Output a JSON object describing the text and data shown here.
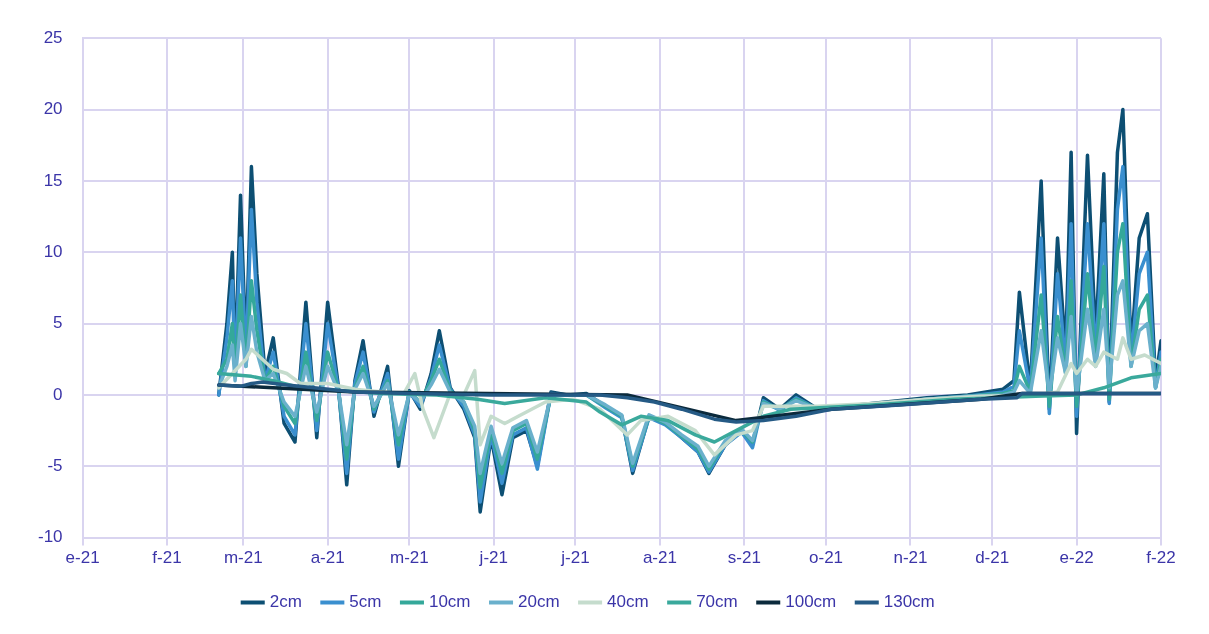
{
  "chart_data": {
    "type": "line",
    "x": [
      "2021-02-20",
      "2021-02-23",
      "2021-02-25",
      "2021-02-26",
      "2021-02-28",
      "2021-03-02",
      "2021-03-04",
      "2021-03-06",
      "2021-03-09",
      "2021-03-12",
      "2021-03-16",
      "2021-03-20",
      "2021-03-24",
      "2021-03-28",
      "2021-04-01",
      "2021-04-05",
      "2021-04-08",
      "2021-04-11",
      "2021-04-14",
      "2021-04-18",
      "2021-04-23",
      "2021-04-27",
      "2021-05-01",
      "2021-05-05",
      "2021-05-09",
      "2021-05-12",
      "2021-05-16",
      "2021-05-21",
      "2021-05-25",
      "2021-05-27",
      "2021-05-31",
      "2021-06-04",
      "2021-06-08",
      "2021-06-13",
      "2021-06-17",
      "2021-06-22",
      "2021-06-28",
      "2021-07-05",
      "2021-07-12",
      "2021-07-18",
      "2021-07-22",
      "2021-07-28",
      "2021-08-03",
      "2021-08-09",
      "2021-08-15",
      "2021-08-19",
      "2021-08-25",
      "2021-08-31",
      "2021-09-04",
      "2021-09-08",
      "2021-09-14",
      "2021-09-20",
      "2021-09-28",
      "2021-10-08",
      "2021-10-23",
      "2021-11-07",
      "2021-11-22",
      "2021-12-05",
      "2021-12-09",
      "2021-12-11",
      "2021-12-15",
      "2021-12-19",
      "2021-12-22",
      "2021-12-25",
      "2021-12-28",
      "2021-12-30",
      "2022-01-01",
      "2022-01-05",
      "2022-01-08",
      "2022-01-11",
      "2022-01-13",
      "2022-01-16",
      "2022-01-18",
      "2022-01-21",
      "2022-01-24",
      "2022-01-27",
      "2022-01-30",
      "2022-02-01"
    ],
    "series": [
      {
        "name": "2cm",
        "color": "#0d4f73",
        "values": [
          0,
          5,
          10,
          2,
          14,
          3,
          16,
          8.5,
          1.5,
          4,
          -2,
          -3.3,
          6.5,
          -3,
          6.5,
          0.5,
          -6.3,
          1,
          3.8,
          -1.5,
          2,
          -5,
          0.3,
          -1,
          1.5,
          4.5,
          0.5,
          -1,
          -3,
          -8.2,
          -3,
          -7,
          -3,
          -2.5,
          -5,
          0.2,
          0,
          0.1,
          -0.8,
          -1.5,
          -5.5,
          -1.5,
          -2,
          -3,
          -4,
          -5.5,
          -3.5,
          -2.5,
          -3.5,
          -0.2,
          -1,
          0,
          -1,
          -0.8,
          -0.5,
          -0.2,
          0,
          0.4,
          1,
          7.2,
          0.5,
          15,
          -1,
          11,
          3,
          17,
          -2.7,
          16.8,
          4,
          15.5,
          -0.5,
          17,
          20,
          3,
          11,
          12.7,
          1,
          3.8
        ]
      },
      {
        "name": "5cm",
        "color": "#3a8fcf",
        "values": [
          0,
          4,
          8,
          1.5,
          11,
          2.5,
          13,
          6.5,
          1,
          3,
          -1.5,
          -2.8,
          5,
          -2.5,
          5,
          0.3,
          -5.5,
          0.8,
          3,
          -1.2,
          1.5,
          -4.5,
          0.2,
          -0.8,
          1.2,
          3.5,
          0.4,
          -0.8,
          -2.8,
          -7.5,
          -2.8,
          -6.2,
          -2.8,
          -2.3,
          -5.2,
          0.1,
          0,
          0,
          -0.9,
          -1.6,
          -5.3,
          -1.6,
          -2.1,
          -3,
          -4,
          -5.4,
          -3.5,
          -2.6,
          -3.7,
          -0.4,
          -1.1,
          -0.2,
          -1,
          -0.8,
          -0.6,
          -0.3,
          -0.1,
          0.2,
          0.6,
          4.5,
          0.3,
          11,
          -1.3,
          8.5,
          2,
          12,
          -1.5,
          12,
          3,
          12,
          -0.6,
          13,
          16,
          2.5,
          8.5,
          10,
          0.5,
          3
        ]
      },
      {
        "name": "10cm",
        "color": "#34a89a",
        "values": [
          1.5,
          2.5,
          5,
          1.5,
          7,
          2,
          8,
          4.5,
          1,
          2,
          -0.8,
          -2,
          3,
          -1.8,
          3,
          0.3,
          -4.5,
          0.5,
          2,
          -1,
          1,
          -3.5,
          0.2,
          -0.5,
          1,
          2.5,
          0.3,
          -0.5,
          -2.5,
          -6.5,
          -2.5,
          -5.5,
          -2.5,
          -2,
          -4.5,
          0,
          0,
          0,
          -0.8,
          -1.5,
          -5,
          -1.5,
          -2,
          -2.9,
          -3.8,
          -5.2,
          -3.3,
          -2.5,
          -3.3,
          -0.5,
          -1,
          -0.3,
          -1,
          -0.8,
          -0.6,
          -0.3,
          -0.1,
          0.1,
          0.3,
          2,
          0.2,
          7,
          -0.8,
          5.5,
          1.5,
          8,
          -0.8,
          8.5,
          2.5,
          9,
          -0.3,
          10,
          12,
          2,
          6,
          7,
          0.5,
          2.5
        ]
      },
      {
        "name": "20cm",
        "color": "#6ab0cc",
        "values": [
          0.5,
          2,
          3.5,
          1,
          5,
          2,
          5.5,
          3,
          1,
          1.5,
          -0.5,
          -1.5,
          2,
          -1.2,
          2,
          0.2,
          -3.5,
          0.4,
          1.5,
          -0.8,
          0.8,
          -2.8,
          0.1,
          -0.5,
          0.7,
          1.8,
          0.2,
          -0.5,
          -2.2,
          -5.5,
          -2.2,
          -4.8,
          -2.3,
          -1.8,
          -4,
          0,
          0,
          0,
          -0.7,
          -1.4,
          -4.8,
          -1.4,
          -1.9,
          -2.8,
          -3.6,
          -5,
          -3.2,
          -2.4,
          -3.2,
          -0.6,
          -1,
          -0.4,
          -1,
          -0.8,
          -0.6,
          -0.3,
          -0.1,
          0,
          0.2,
          1,
          0.1,
          4.5,
          0,
          4,
          1.5,
          5.5,
          0,
          6,
          2,
          6,
          0.5,
          7,
          8,
          2,
          4.5,
          5,
          0.5,
          2
        ]
      },
      {
        "name": "40cm",
        "color": "#c5dccd",
        "x": [
          "2021-02-20",
          "2021-02-25",
          "2021-03-02",
          "2021-03-04",
          "2021-03-08",
          "2021-03-12",
          "2021-03-17",
          "2021-03-22",
          "2021-04-01",
          "2021-04-11",
          "2021-04-21",
          "2021-04-29",
          "2021-05-03",
          "2021-05-06",
          "2021-05-10",
          "2021-05-16",
          "2021-05-21",
          "2021-05-25",
          "2021-05-27",
          "2021-05-31",
          "2021-06-05",
          "2021-06-10",
          "2021-06-20",
          "2021-06-30",
          "2021-07-10",
          "2021-07-20",
          "2021-07-25",
          "2021-08-04",
          "2021-08-14",
          "2021-08-21",
          "2021-08-29",
          "2021-09-04",
          "2021-09-08",
          "2021-09-18",
          "2021-09-28",
          "2021-10-18",
          "2021-11-07",
          "2021-11-27",
          "2021-12-17",
          "2021-12-25",
          "2021-12-30",
          "2022-01-01",
          "2022-01-05",
          "2022-01-08",
          "2022-01-11",
          "2022-01-16",
          "2022-01-18",
          "2022-01-21",
          "2022-01-26",
          "2022-02-01"
        ],
        "values": [
          0.5,
          1.5,
          2.5,
          3.2,
          2.5,
          1.8,
          1.5,
          0.8,
          0.8,
          0.4,
          0.2,
          0.1,
          1.5,
          -1,
          -3,
          0.1,
          0,
          1.7,
          -3.5,
          -1.5,
          -2,
          -1.5,
          -0.5,
          -0.3,
          -1,
          -2.8,
          -1.8,
          -1.5,
          -2.5,
          -4.2,
          -2.8,
          -2.5,
          -0.8,
          -0.8,
          -0.8,
          -0.6,
          -0.3,
          -0.1,
          0,
          0.2,
          2.2,
          1.5,
          2.5,
          2,
          3,
          2.5,
          4,
          2.5,
          2.8,
          2.2
        ]
      },
      {
        "name": "70cm",
        "color": "#3aa99c",
        "x": [
          "2021-02-20",
          "2021-03-04",
          "2021-03-12",
          "2021-03-22",
          "2021-04-06",
          "2021-04-21",
          "2021-05-11",
          "2021-05-26",
          "2021-06-05",
          "2021-06-20",
          "2021-07-05",
          "2021-07-10",
          "2021-07-18",
          "2021-07-25",
          "2021-08-04",
          "2021-08-14",
          "2021-08-21",
          "2021-08-29",
          "2021-09-08",
          "2021-09-18",
          "2021-10-18",
          "2021-11-17",
          "2021-12-17",
          "2022-01-01",
          "2022-01-11",
          "2022-01-21",
          "2022-02-01"
        ],
        "values": [
          1.5,
          1.3,
          1,
          0.5,
          0.3,
          0.1,
          0,
          -0.3,
          -0.6,
          -0.2,
          -0.5,
          -1.2,
          -2.1,
          -1.5,
          -1.8,
          -2.8,
          -3.3,
          -2.5,
          -1.5,
          -1,
          -0.7,
          -0.3,
          -0.1,
          0,
          0.5,
          1.2,
          1.5
        ]
      },
      {
        "name": "100cm",
        "color": "#0b2a3c",
        "x": [
          "2021-02-20",
          "2021-04-11",
          "2021-07-20",
          "2021-08-29",
          "2021-10-03",
          "2021-11-27",
          "2021-12-12",
          "2022-02-01"
        ],
        "values": [
          0.7,
          0.2,
          0,
          -1.8,
          -1,
          -0.3,
          0.1,
          0.1
        ]
      },
      {
        "name": "130cm",
        "color": "#255a85",
        "x": [
          "2021-02-20",
          "2021-02-28",
          "2021-03-04",
          "2021-03-08",
          "2021-03-17",
          "2021-03-27",
          "2021-04-11",
          "2021-05-01",
          "2021-05-31",
          "2021-07-10",
          "2021-07-20",
          "2021-07-30",
          "2021-08-09",
          "2021-08-21",
          "2021-08-29",
          "2021-09-08",
          "2021-09-20",
          "2021-10-03",
          "2021-10-28",
          "2021-11-27",
          "2021-12-10",
          "2021-12-12",
          "2022-01-06",
          "2022-02-01"
        ],
        "values": [
          0.7,
          0.6,
          0.8,
          0.9,
          0.7,
          0.5,
          0.2,
          0.1,
          0,
          0,
          -0.2,
          -0.5,
          -1,
          -1.7,
          -1.9,
          -1.8,
          -1.5,
          -1,
          -0.7,
          -0.3,
          -0.2,
          0.1,
          0.1,
          0.1
        ]
      }
    ],
    "xlim": [
      "2021-01-01",
      "2022-02-01"
    ],
    "xticks": [
      {
        "value": "2021-01-01",
        "label": "e-21"
      },
      {
        "value": "2021-02-01",
        "label": "f-21"
      },
      {
        "value": "2021-03-01",
        "label": "m-21"
      },
      {
        "value": "2021-04-01",
        "label": "a-21"
      },
      {
        "value": "2021-05-01",
        "label": "m-21"
      },
      {
        "value": "2021-06-01",
        "label": "j-21"
      },
      {
        "value": "2021-07-01",
        "label": "j-21"
      },
      {
        "value": "2021-08-01",
        "label": "a-21"
      },
      {
        "value": "2021-09-01",
        "label": "s-21"
      },
      {
        "value": "2021-10-01",
        "label": "o-21"
      },
      {
        "value": "2021-11-01",
        "label": "n-21"
      },
      {
        "value": "2021-12-01",
        "label": "d-21"
      },
      {
        "value": "2022-01-01",
        "label": "e-22"
      },
      {
        "value": "2022-02-01",
        "label": "f-22"
      }
    ],
    "ylim": [
      -10,
      25
    ],
    "yticks": [
      -10,
      -5,
      0,
      5,
      10,
      15,
      20,
      25
    ],
    "grid": true,
    "legend": "bottom",
    "marker": "none",
    "line_style": "solid"
  }
}
